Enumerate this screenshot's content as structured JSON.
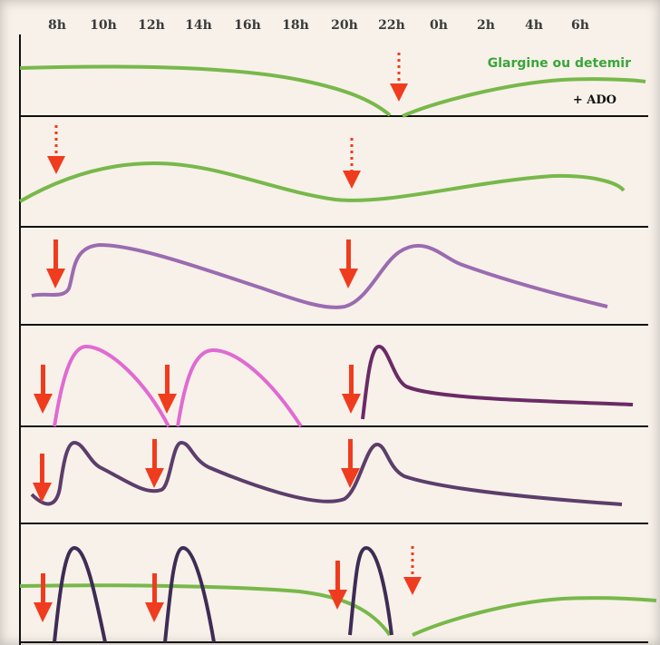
{
  "time_axis": {
    "ticks": [
      "8h",
      "10h",
      "12h",
      "14h",
      "16h",
      "18h",
      "20h",
      "22h",
      "0h",
      "2h",
      "4h",
      "6h"
    ]
  },
  "labels": {
    "basal_insulin": "Glargine ou detemir",
    "oral_agents": "+ ADO"
  },
  "colors": {
    "background": "#f7f1e9",
    "basal_curve": "#78b84a",
    "intermediate_curve": "#9b6bb0",
    "rapid_curve": "#e06ad2",
    "premix_curve": "#5c3d6b",
    "mixture_dark": "#6b2a66",
    "arrow": "#f03c1e",
    "divider": "#111111"
  },
  "icons": {
    "injection_arrow": "solid-red-down-arrow",
    "optional_injection_arrow": "dotted-red-down-arrow"
  }
}
